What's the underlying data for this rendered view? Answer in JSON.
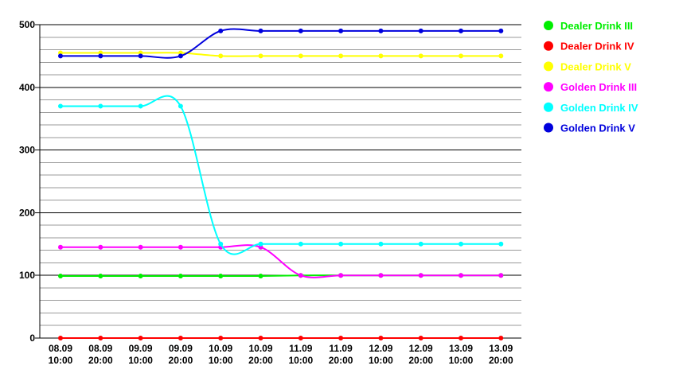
{
  "chart_data": {
    "type": "line",
    "title": "",
    "xlabel": "",
    "ylabel": "",
    "ylim": [
      0,
      500
    ],
    "yticks": [
      0,
      100,
      200,
      300,
      400,
      500
    ],
    "minor_step": 20,
    "grid": true,
    "legend_position": "right",
    "categories": [
      [
        "08.09",
        "10:00"
      ],
      [
        "08.09",
        "20:00"
      ],
      [
        "09.09",
        "10:00"
      ],
      [
        "09.09",
        "20:00"
      ],
      [
        "10.09",
        "10:00"
      ],
      [
        "10.09",
        "20:00"
      ],
      [
        "11.09",
        "10:00"
      ],
      [
        "11.09",
        "20:00"
      ],
      [
        "12.09",
        "10:00"
      ],
      [
        "12.09",
        "20:00"
      ],
      [
        "13.09",
        "10:00"
      ],
      [
        "13.09",
        "20:00"
      ]
    ],
    "series": [
      {
        "name": "Dealer Drink III",
        "color": "#00ee00",
        "values": [
          99,
          99,
          99,
          99,
          99,
          99,
          100,
          100,
          100,
          100,
          100,
          100
        ]
      },
      {
        "name": "Dealer Drink IV",
        "color": "#ff0000",
        "values": [
          0,
          0,
          0,
          0,
          0,
          0,
          0,
          0,
          0,
          0,
          0,
          0
        ]
      },
      {
        "name": "Dealer Drink V",
        "color": "#ffff00",
        "values": [
          455,
          455,
          455,
          455,
          450,
          450,
          450,
          450,
          450,
          450,
          450,
          450
        ]
      },
      {
        "name": "Golden Drink III",
        "color": "#ff00ff",
        "values": [
          145,
          145,
          145,
          145,
          145,
          145,
          100,
          100,
          100,
          100,
          100,
          100
        ]
      },
      {
        "name": "Golden Drink IV",
        "color": "#00ffff",
        "values": [
          370,
          370,
          370,
          370,
          150,
          150,
          150,
          150,
          150,
          150,
          150,
          150
        ]
      },
      {
        "name": "Golden Drink V",
        "color": "#0000dd",
        "values": [
          450,
          450,
          450,
          450,
          490,
          490,
          490,
          490,
          490,
          490,
          490,
          490
        ]
      }
    ]
  }
}
